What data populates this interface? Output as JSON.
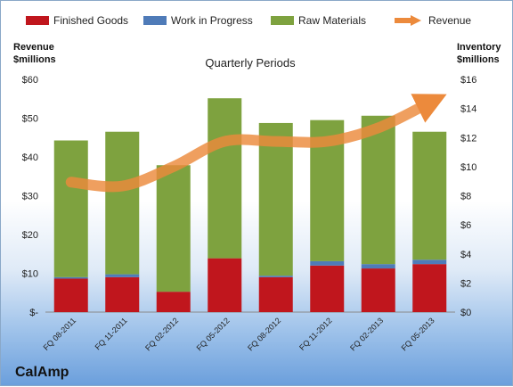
{
  "company": "CalAmp",
  "chart_data": {
    "type": "bar",
    "title": "Quarterly Periods",
    "left_axis_title": [
      "Revenue",
      "$millions"
    ],
    "right_axis_title": [
      "Inventory",
      "$millions"
    ],
    "categories": [
      "FQ 08-2011",
      "FQ 11-2011",
      "FQ 02-2012",
      "FQ 05-2012",
      "FQ 08-2012",
      "FQ 11-2012",
      "FQ 02-2013",
      "FQ 05-2013"
    ],
    "left_ticks": [
      "$-",
      "$10",
      "$20",
      "$30",
      "$40",
      "$50",
      "$60"
    ],
    "right_ticks": [
      "$0",
      "$2",
      "$4",
      "$6",
      "$8",
      "$10",
      "$12",
      "$14",
      "$16"
    ],
    "left_ylim": [
      0,
      60
    ],
    "right_ylim": [
      0,
      16
    ],
    "stacked": true,
    "legend_position": "top",
    "series": [
      {
        "name": "Finished Goods",
        "axis": "right",
        "type": "bar",
        "color": "#c0161d",
        "values": [
          2.3,
          2.4,
          1.4,
          3.7,
          2.4,
          3.2,
          3.0,
          3.3
        ]
      },
      {
        "name": "Work in Progress",
        "axis": "right",
        "type": "bar",
        "color": "#4f7bb8",
        "values": [
          0.1,
          0.2,
          0.0,
          0.0,
          0.1,
          0.3,
          0.3,
          0.3
        ]
      },
      {
        "name": "Raw Materials",
        "axis": "right",
        "type": "bar",
        "color": "#7ea23f",
        "values": [
          9.4,
          9.8,
          8.7,
          11.0,
          10.5,
          9.7,
          10.2,
          8.8
        ]
      },
      {
        "name": "Revenue",
        "axis": "left",
        "type": "line",
        "color": "#ec8a3c",
        "values": [
          33.5,
          32.5,
          37.5,
          44,
          44,
          44,
          47.5,
          54
        ]
      }
    ]
  }
}
